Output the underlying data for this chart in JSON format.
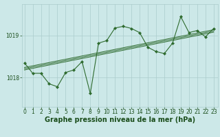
{
  "title": "Graphe pression niveau de la mer (hPa)",
  "bg_color": "#cce8e8",
  "grid_color": "#aacccc",
  "line_color": "#2d6a2d",
  "x_ticks": [
    0,
    1,
    2,
    3,
    4,
    5,
    6,
    7,
    8,
    9,
    10,
    11,
    12,
    13,
    14,
    15,
    16,
    17,
    18,
    19,
    20,
    21,
    22,
    23
  ],
  "y_ticks": [
    1018,
    1019
  ],
  "ylim": [
    1017.3,
    1019.75
  ],
  "xlim": [
    -0.3,
    23.5
  ],
  "pressure_data": [
    1018.35,
    1018.1,
    1018.1,
    1017.85,
    1017.78,
    1018.12,
    1018.18,
    1018.38,
    1017.62,
    1018.82,
    1018.88,
    1019.18,
    1019.22,
    1019.17,
    1019.07,
    1018.72,
    1018.62,
    1018.57,
    1018.82,
    1019.45,
    1019.07,
    1019.12,
    1018.97,
    1019.17
  ],
  "band_lines": [
    [
      [
        0,
        1018.18
      ],
      [
        23,
        1019.08
      ]
    ],
    [
      [
        0,
        1018.21
      ],
      [
        23,
        1019.11
      ]
    ],
    [
      [
        0,
        1018.24
      ],
      [
        23,
        1019.14
      ]
    ]
  ],
  "font_color": "#1a4d1a",
  "title_fontsize": 7.0,
  "tick_fontsize": 5.5
}
